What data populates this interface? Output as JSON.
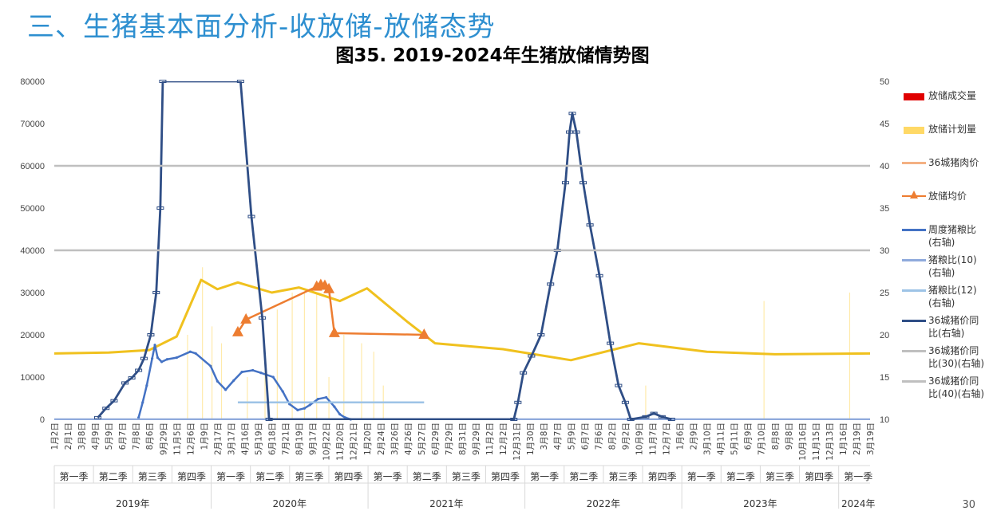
{
  "slide_title": "三、生猪基本面分析-收放储-放储态势",
  "page_number": "30",
  "chart_data": {
    "type": "line",
    "title": "图35. 2019-2024年生猪放储情势图",
    "left_ylim": [
      0,
      80000
    ],
    "left_ticks": [
      "0",
      "10000",
      "20000",
      "30000",
      "40000",
      "50000",
      "60000",
      "70000",
      "80000"
    ],
    "right_ylim": [
      10,
      50
    ],
    "right_ticks": [
      "10",
      "15",
      "20",
      "25",
      "30",
      "35",
      "40",
      "45",
      "50"
    ],
    "grid": "horizontal",
    "legend_position": "right",
    "x_tick_labels": [
      "1月2日",
      "2月1日",
      "3月8日",
      "4月9日",
      "5月9日",
      "6月7日",
      "7月8日",
      "8月6日",
      "9月29日",
      "11月5日",
      "12月6日",
      "1月9日",
      "2月17日",
      "3月17日",
      "4月16日",
      "5月19日",
      "6月18日",
      "7月21日",
      "8月19日",
      "9月17日",
      "10月22日",
      "11月20日",
      "12月21日",
      "1月20日",
      "2月24日",
      "3月26日",
      "4月26日",
      "5月27日",
      "6月29日",
      "7月29日",
      "8月31日",
      "9月29日",
      "11月2日",
      "12月2日",
      "12月31日",
      "1月30日",
      "3月8日",
      "4月7日",
      "5月9日",
      "6月7日",
      "7月6日",
      "8月2日",
      "9月2日",
      "10月9日",
      "11月7日",
      "12月7日",
      "1月6日",
      "2月9日",
      "3月10日",
      "4月11日",
      "5月11日",
      "6月9日",
      "7月10日",
      "8月8日",
      "9月8日",
      "10月16日",
      "11月15日",
      "12月13日",
      "1月16日",
      "2月19日",
      "3月19日"
    ],
    "quarters": [
      "第一季",
      "第二季",
      "第三季",
      "第四季",
      "第一季",
      "第二季",
      "第三季",
      "第四季",
      "第一季",
      "第二季",
      "第三季",
      "第四季",
      "第一季",
      "第二季",
      "第三季",
      "第四季",
      "第一季",
      "第二季",
      "第三季",
      "第四季",
      "第一季"
    ],
    "years": [
      {
        "label": "2019年",
        "quarters": 4
      },
      {
        "label": "2020年",
        "quarters": 4
      },
      {
        "label": "2021年",
        "quarters": 4
      },
      {
        "label": "2022年",
        "quarters": 4
      },
      {
        "label": "2023年",
        "quarters": 4
      },
      {
        "label": "2024年",
        "quarters": 1
      }
    ],
    "series": [
      {
        "name": "放储成交量",
        "axis": "left",
        "style": "bar",
        "color": "#e00000",
        "points": []
      },
      {
        "name": "放储计划量",
        "axis": "left",
        "style": "bar",
        "color": "#ffd966",
        "points": [
          [
            9.8,
            20000
          ],
          [
            10.9,
            36000
          ],
          [
            11.6,
            22000
          ],
          [
            12.3,
            18000
          ],
          [
            14.2,
            10000
          ],
          [
            15.5,
            12000
          ],
          [
            16.4,
            26000
          ],
          [
            17.5,
            30000
          ],
          [
            18.4,
            30000
          ],
          [
            19.3,
            30000
          ],
          [
            20.2,
            10000
          ],
          [
            21.3,
            20000
          ],
          [
            22.6,
            18000
          ],
          [
            23.5,
            16000
          ],
          [
            24.2,
            8000
          ],
          [
            43.5,
            8000
          ],
          [
            52.2,
            28000
          ],
          [
            58.5,
            30000
          ]
        ]
      },
      {
        "name": "36城猪肉价",
        "axis": "right",
        "style": "line",
        "color": "#f4b183",
        "points": [
          [
            0,
            17.8
          ],
          [
            4,
            17.9
          ],
          [
            7,
            18.2
          ],
          [
            9,
            19.8
          ],
          [
            10.8,
            26.5
          ],
          [
            12,
            25.4
          ],
          [
            13.5,
            26.2
          ],
          [
            16,
            25
          ],
          [
            18,
            25.6
          ],
          [
            21,
            24
          ],
          [
            23,
            25.5
          ],
          [
            26,
            21.5
          ],
          [
            28,
            19
          ],
          [
            33,
            18.3
          ],
          [
            38,
            17
          ],
          [
            43,
            19
          ],
          [
            48,
            18
          ],
          [
            53,
            17.7
          ],
          [
            60,
            17.8
          ]
        ]
      },
      {
        "name": "放储均价",
        "axis": "right",
        "style": "line-marker",
        "color": "#ed7d31",
        "points": [
          [
            13.5,
            20.3
          ],
          [
            14.1,
            21.8
          ],
          [
            19.3,
            25.7
          ],
          [
            19.6,
            25.9
          ],
          [
            19.9,
            25.8
          ],
          [
            20.2,
            25.4
          ],
          [
            20.6,
            20.2
          ],
          [
            27.2,
            20
          ]
        ]
      },
      {
        "name": "周度猪粮比",
        "axis": "right",
        "style": "line",
        "color": "#4472c4",
        "points": [
          [
            6.2,
            10.2
          ],
          [
            6.5,
            12
          ],
          [
            6.8,
            14
          ],
          [
            7.2,
            17.2
          ],
          [
            7.4,
            18.8
          ],
          [
            7.6,
            17.3
          ],
          [
            7.9,
            16.8
          ],
          [
            8.3,
            17.1
          ],
          [
            9,
            17.3
          ],
          [
            10,
            18
          ],
          [
            10.4,
            17.8
          ],
          [
            11.5,
            16.3
          ],
          [
            12,
            14.5
          ],
          [
            12.6,
            13.5
          ],
          [
            13.2,
            14.6
          ],
          [
            13.8,
            15.6
          ],
          [
            14.6,
            15.8
          ],
          [
            15.2,
            15.5
          ],
          [
            16.1,
            15
          ],
          [
            16.8,
            13.3
          ],
          [
            17.3,
            11.8
          ],
          [
            17.9,
            11.1
          ],
          [
            18.4,
            11.3
          ],
          [
            18.8,
            11.7
          ],
          [
            19.4,
            12.4
          ],
          [
            20,
            12.6
          ],
          [
            20.6,
            11.5
          ],
          [
            21,
            10.6
          ],
          [
            21.4,
            10.2
          ],
          [
            21.8,
            10
          ]
        ]
      },
      {
        "name": "猪粮比(10)",
        "axis": "right",
        "style": "line",
        "color": "#8faadc",
        "points": [
          [
            0,
            10
          ],
          [
            60.5,
            10
          ]
        ]
      },
      {
        "name": "猪粮比(12)",
        "axis": "right",
        "style": "line",
        "color": "#9dc3e6",
        "points": [
          [
            13.5,
            12
          ],
          [
            27.2,
            12
          ]
        ]
      },
      {
        "name": "36城猪价同比",
        "axis": "right",
        "style": "line-marker",
        "color": "#2f4e86",
        "points": [
          [
            3.2,
            10.2
          ],
          [
            3.8,
            11.3
          ],
          [
            4.4,
            12.2
          ],
          [
            5.2,
            14.3
          ],
          [
            5.7,
            14.9
          ],
          [
            6.2,
            15.8
          ],
          [
            6.6,
            17.2
          ],
          [
            7.1,
            20
          ],
          [
            7.5,
            25
          ],
          [
            7.8,
            35
          ],
          [
            7.98,
            50
          ],
          [
            13.7,
            50
          ],
          [
            14.5,
            34
          ],
          [
            15.3,
            22
          ],
          [
            15.8,
            10
          ],
          [
            33.8,
            10
          ],
          [
            34.1,
            12
          ],
          [
            34.5,
            15.5
          ],
          [
            35.1,
            17.5
          ],
          [
            35.8,
            20
          ],
          [
            36.5,
            26
          ],
          [
            37,
            30
          ],
          [
            37.6,
            38
          ],
          [
            37.9,
            44
          ],
          [
            38.1,
            46.2
          ],
          [
            38.4,
            44
          ],
          [
            38.9,
            38
          ],
          [
            39.4,
            33
          ],
          [
            40.1,
            27
          ],
          [
            40.9,
            19
          ],
          [
            41.5,
            14
          ],
          [
            42,
            12
          ],
          [
            42.4,
            10
          ],
          [
            43.5,
            10.3
          ],
          [
            44.1,
            10.7
          ],
          [
            44.7,
            10.3
          ],
          [
            45.4,
            10
          ]
        ]
      },
      {
        "name": "36城猪价同比(30)",
        "axis": "right",
        "style": "line",
        "color": "#bfbfbf",
        "points": [
          [
            0,
            30
          ],
          [
            60.5,
            30
          ]
        ]
      },
      {
        "name": "36城猪价同比(40)",
        "axis": "right",
        "style": "line",
        "color": "#bfbfbf",
        "points": [
          [
            0,
            40
          ],
          [
            60.5,
            40
          ]
        ]
      }
    ]
  },
  "legend": [
    {
      "label": "放储成交量",
      "style": "bar",
      "color": "#e00000"
    },
    {
      "label": "放储计划量",
      "style": "bar",
      "color": "#ffd966"
    },
    {
      "label": "36城猪肉价",
      "style": "line",
      "color": "#f4b183"
    },
    {
      "label": "放储均价",
      "style": "line-marker",
      "color": "#ed7d31"
    },
    {
      "label": "周度猪粮比(右轴)",
      "style": "line",
      "color": "#4472c4"
    },
    {
      "label": "猪粮比(10)(右轴)",
      "style": "line",
      "color": "#8faadc"
    },
    {
      "label": "猪粮比(12)(右轴)",
      "style": "line",
      "color": "#9dc3e6"
    },
    {
      "label": "36城猪价同比(右轴)",
      "style": "line",
      "color": "#2f4e86"
    },
    {
      "label": "36城猪价同比(30)(右轴)",
      "style": "line",
      "color": "#bfbfbf"
    },
    {
      "label": "36城猪价同比(40)(右轴)",
      "style": "line",
      "color": "#bfbfbf"
    }
  ]
}
